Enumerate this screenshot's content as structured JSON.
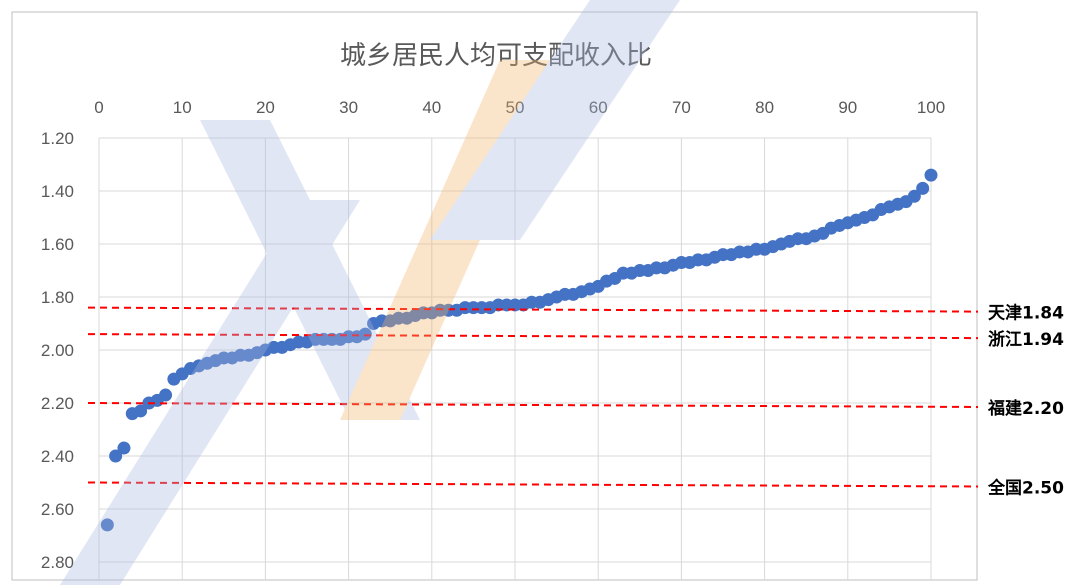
{
  "colors": {
    "series": "#4472c4",
    "reference": "#ff0000",
    "grid": "#d9d9d9",
    "frame": "#bfbfbf",
    "text": "#595959",
    "watermark_blue": "#c9d3ec",
    "watermark_orange": "#f6d9b3"
  },
  "chart_data": {
    "type": "scatter",
    "title": "城乡居民人均可支配收入比",
    "xlim": [
      0,
      100
    ],
    "x_ticks": [
      0,
      10,
      20,
      30,
      40,
      50,
      60,
      70,
      80,
      90,
      100
    ],
    "x_axis_position": "top",
    "ylim": [
      1.2,
      2.8
    ],
    "y_reversed": true,
    "y_ticks": [
      "1.20",
      "1.40",
      "1.60",
      "1.80",
      "2.00",
      "2.20",
      "2.40",
      "2.60",
      "2.80"
    ],
    "grid": true,
    "series": [
      {
        "points": [
          [
            1,
            2.66
          ],
          [
            2,
            2.4
          ],
          [
            3,
            2.37
          ],
          [
            4,
            2.24
          ],
          [
            5,
            2.23
          ],
          [
            6,
            2.2
          ],
          [
            7,
            2.19
          ],
          [
            8,
            2.17
          ],
          [
            9,
            2.11
          ],
          [
            10,
            2.09
          ],
          [
            11,
            2.07
          ],
          [
            12,
            2.06
          ],
          [
            13,
            2.05
          ],
          [
            14,
            2.04
          ],
          [
            15,
            2.03
          ],
          [
            16,
            2.03
          ],
          [
            17,
            2.02
          ],
          [
            18,
            2.02
          ],
          [
            19,
            2.01
          ],
          [
            20,
            2.0
          ],
          [
            21,
            1.99
          ],
          [
            22,
            1.99
          ],
          [
            23,
            1.98
          ],
          [
            24,
            1.97
          ],
          [
            25,
            1.97
          ],
          [
            26,
            1.96
          ],
          [
            27,
            1.96
          ],
          [
            28,
            1.96
          ],
          [
            29,
            1.96
          ],
          [
            30,
            1.95
          ],
          [
            31,
            1.95
          ],
          [
            32,
            1.94
          ],
          [
            33,
            1.9
          ],
          [
            34,
            1.89
          ],
          [
            35,
            1.89
          ],
          [
            36,
            1.88
          ],
          [
            37,
            1.88
          ],
          [
            38,
            1.87
          ],
          [
            39,
            1.86
          ],
          [
            40,
            1.86
          ],
          [
            41,
            1.85
          ],
          [
            42,
            1.85
          ],
          [
            43,
            1.85
          ],
          [
            44,
            1.84
          ],
          [
            45,
            1.84
          ],
          [
            46,
            1.84
          ],
          [
            47,
            1.84
          ],
          [
            48,
            1.83
          ],
          [
            49,
            1.83
          ],
          [
            50,
            1.83
          ],
          [
            51,
            1.83
          ],
          [
            52,
            1.82
          ],
          [
            53,
            1.82
          ],
          [
            54,
            1.81
          ],
          [
            55,
            1.8
          ],
          [
            56,
            1.79
          ],
          [
            57,
            1.79
          ],
          [
            58,
            1.78
          ],
          [
            59,
            1.77
          ],
          [
            60,
            1.76
          ],
          [
            61,
            1.74
          ],
          [
            62,
            1.73
          ],
          [
            63,
            1.71
          ],
          [
            64,
            1.71
          ],
          [
            65,
            1.7
          ],
          [
            66,
            1.7
          ],
          [
            67,
            1.69
          ],
          [
            68,
            1.69
          ],
          [
            69,
            1.68
          ],
          [
            70,
            1.67
          ],
          [
            71,
            1.67
          ],
          [
            72,
            1.66
          ],
          [
            73,
            1.66
          ],
          [
            74,
            1.65
          ],
          [
            75,
            1.64
          ],
          [
            76,
            1.64
          ],
          [
            77,
            1.63
          ],
          [
            78,
            1.63
          ],
          [
            79,
            1.62
          ],
          [
            80,
            1.62
          ],
          [
            81,
            1.61
          ],
          [
            82,
            1.6
          ],
          [
            83,
            1.59
          ],
          [
            84,
            1.58
          ],
          [
            85,
            1.58
          ],
          [
            86,
            1.57
          ],
          [
            87,
            1.56
          ],
          [
            88,
            1.54
          ],
          [
            89,
            1.53
          ],
          [
            90,
            1.52
          ],
          [
            91,
            1.51
          ],
          [
            92,
            1.5
          ],
          [
            93,
            1.49
          ],
          [
            94,
            1.47
          ],
          [
            95,
            1.46
          ],
          [
            96,
            1.45
          ],
          [
            97,
            1.44
          ],
          [
            98,
            1.42
          ],
          [
            99,
            1.39
          ],
          [
            100,
            1.34
          ]
        ]
      }
    ],
    "reference_lines": [
      {
        "label": "天津1.84",
        "value": 1.84
      },
      {
        "label": "浙江1.94",
        "value": 1.94
      },
      {
        "label": "福建2.20",
        "value": 2.2
      },
      {
        "label": "全国2.50",
        "value": 2.5
      }
    ]
  }
}
